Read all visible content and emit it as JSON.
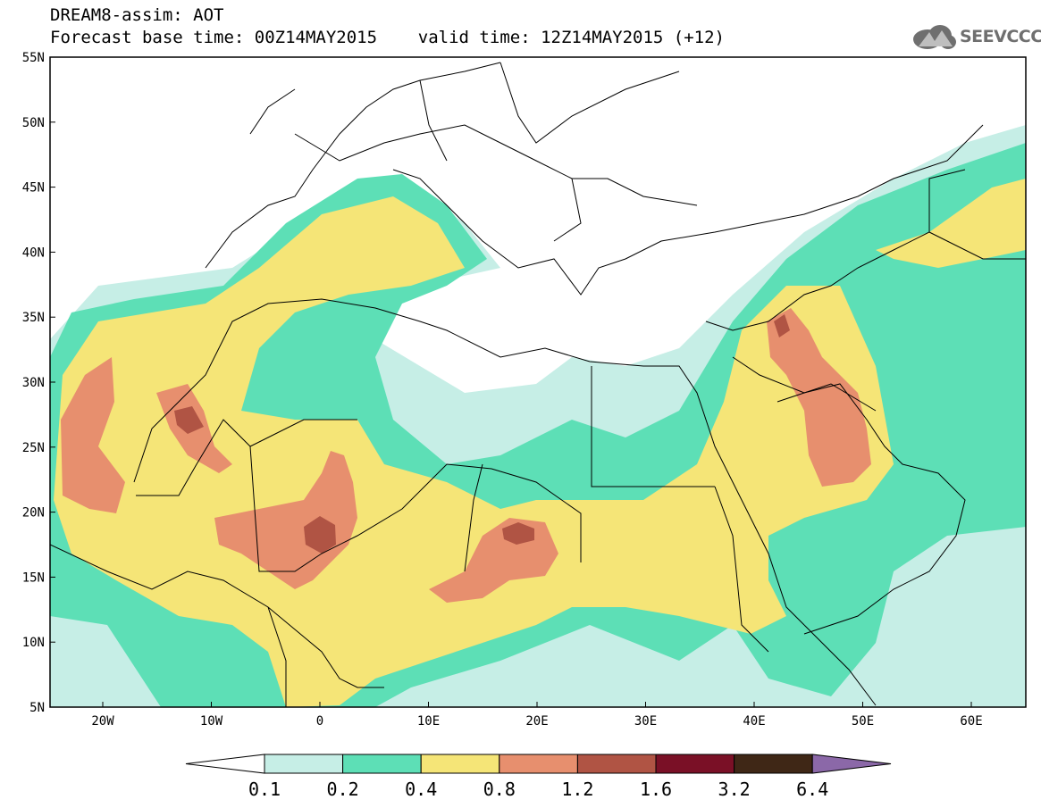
{
  "title": {
    "line1": "DREAM8-assim: AOT",
    "line2": "Forecast base time: 00Z14MAY2015    valid time: 12Z14MAY2015 (+12)"
  },
  "logo": {
    "text": "SEEVCCC",
    "icon": "cloud-logo-icon",
    "color": "#6f6f6f"
  },
  "axes": {
    "lat_labels": [
      "55N",
      "50N",
      "45N",
      "40N",
      "35N",
      "30N",
      "25N",
      "20N",
      "15N",
      "10N",
      "5N"
    ],
    "lon_labels": [
      "20W",
      "10W",
      "0",
      "10E",
      "20E",
      "30E",
      "40E",
      "50E",
      "60E"
    ]
  },
  "colorbar": {
    "levels": [
      "0.1",
      "0.2",
      "0.4",
      "0.8",
      "1.2",
      "1.6",
      "3.2",
      "6.4"
    ],
    "colors": [
      "#c6eee6",
      "#5ddfb6",
      "#f5e577",
      "#e78f6e",
      "#b05444",
      "#7a1026",
      "#3f2716",
      "#8b68a8"
    ]
  },
  "map_colors": {
    "c1": "#c6eee6",
    "c2": "#5ddfb6",
    "c3": "#f5e577",
    "c4": "#e78f6e",
    "c5": "#b05444",
    "border": "#000000"
  }
}
